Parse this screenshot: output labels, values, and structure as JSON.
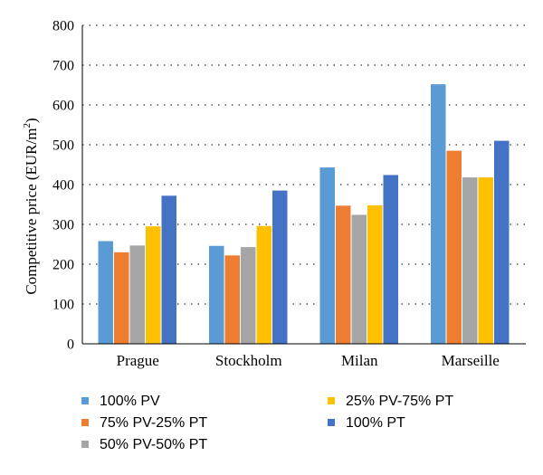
{
  "chart_data": {
    "type": "bar",
    "categories": [
      "Prague",
      "Stockholm",
      "Milan",
      "Marseille"
    ],
    "series": [
      {
        "name": "100% PV",
        "color": "#5b9bd5",
        "values": [
          258,
          246,
          443,
          652
        ]
      },
      {
        "name": "75% PV-25% PT",
        "color": "#ed7d31",
        "values": [
          230,
          222,
          347,
          485
        ]
      },
      {
        "name": "50% PV-50% PT",
        "color": "#a5a5a5",
        "values": [
          247,
          243,
          324,
          418
        ]
      },
      {
        "name": "25% PV-75% PT",
        "color": "#ffc000",
        "values": [
          295,
          296,
          348,
          418
        ]
      },
      {
        "name": "100% PT",
        "color": "#4472c4",
        "values": [
          372,
          385,
          424,
          510
        ]
      }
    ],
    "ylabel": "Competitive price (EUR/m²)",
    "ylabel_parts": {
      "prefix": "Competitive price (EUR/m",
      "sup": "2",
      "suffix": ")"
    },
    "ylim": [
      0,
      800
    ],
    "yticks": [
      0,
      100,
      200,
      300,
      400,
      500,
      600,
      700,
      800
    ],
    "grid": "dotted horizontal",
    "legend_position": "bottom"
  }
}
